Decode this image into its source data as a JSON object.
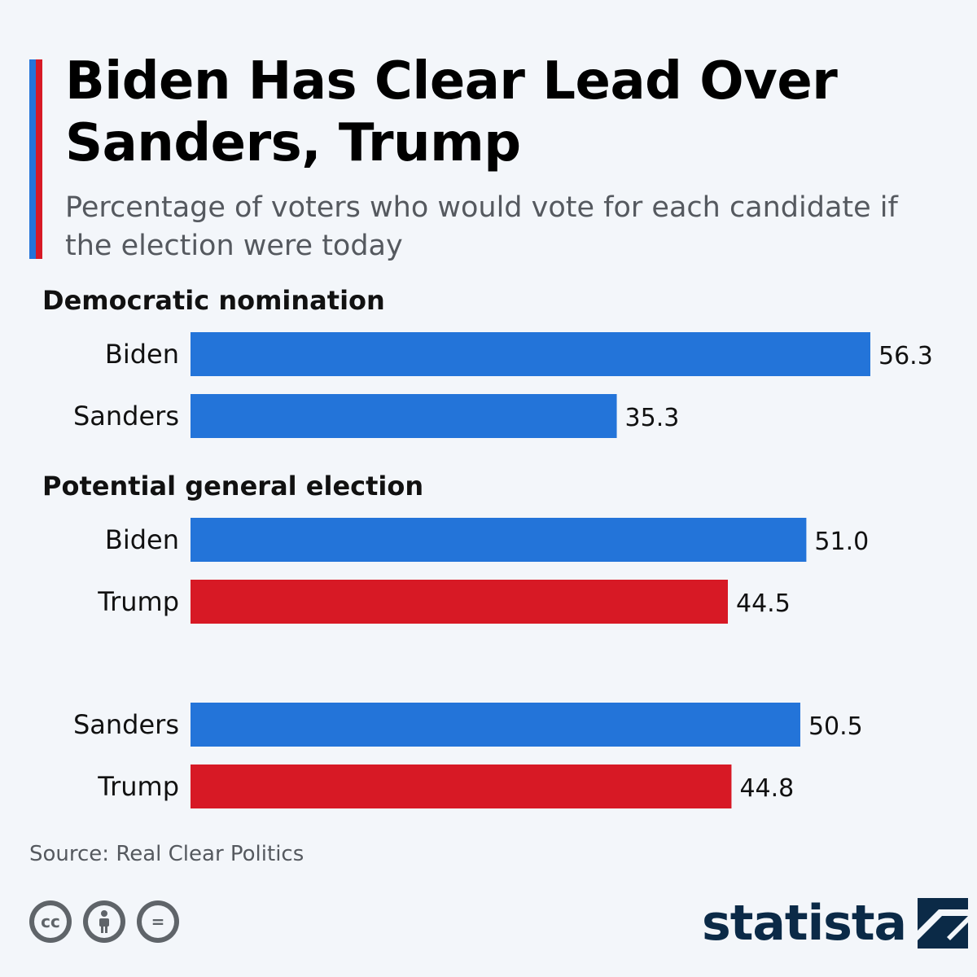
{
  "title": "Biden Has Clear Lead Over Sanders, Trump",
  "subtitle": "Percentage of voters who would vote for each candidate if the election were today",
  "colors": {
    "blue": "#2374d9",
    "red": "#d71925",
    "text": "#111111",
    "muted": "#55595f",
    "brand": "#0b2a47"
  },
  "chart_data": {
    "type": "bar",
    "orientation": "horizontal",
    "title": "Biden Has Clear Lead Over Sanders, Trump",
    "xlabel": "",
    "ylabel": "",
    "xlim": [
      0,
      56.3
    ],
    "groups": [
      {
        "label": "Democratic nomination",
        "bars": [
          {
            "name": "Biden",
            "value": 56.3,
            "label": "56.3",
            "party": "blue"
          },
          {
            "name": "Sanders",
            "value": 35.3,
            "label": "35.3",
            "party": "blue"
          }
        ]
      },
      {
        "label": "Potential general election",
        "bars": [
          {
            "name": "Biden",
            "value": 51.0,
            "label": "51.0",
            "party": "blue"
          },
          {
            "name": "Trump",
            "value": 44.5,
            "label": "44.5",
            "party": "red"
          }
        ]
      },
      {
        "label": "",
        "bars": [
          {
            "name": "Sanders",
            "value": 50.5,
            "label": "50.5",
            "party": "blue"
          },
          {
            "name": "Trump",
            "value": 44.8,
            "label": "44.8",
            "party": "red"
          }
        ]
      }
    ]
  },
  "source": "Source: Real Clear Politics",
  "license_icons": [
    "creative-commons-icon",
    "attribution-icon",
    "no-derivatives-icon"
  ],
  "license_glyphs": {
    "cc": "cc",
    "by": "i",
    "nd": "="
  },
  "brand": "statista"
}
